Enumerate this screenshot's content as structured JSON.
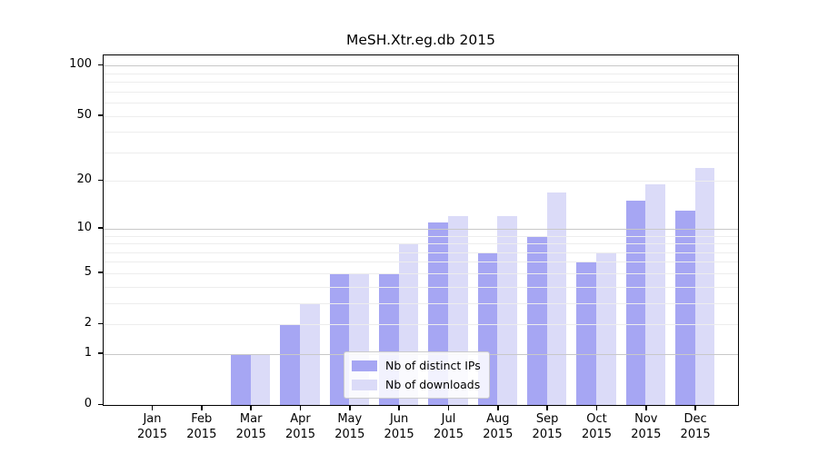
{
  "chart_data": {
    "type": "bar",
    "title": "MeSH.Xtr.eg.db 2015",
    "categories": [
      "Jan",
      "Feb",
      "Mar",
      "Apr",
      "May",
      "Jun",
      "Jul",
      "Aug",
      "Sep",
      "Oct",
      "Nov",
      "Dec"
    ],
    "year": "2015",
    "series": [
      {
        "name": "Nb of distinct IPs",
        "color": "#a6a6f3",
        "values": [
          0,
          0,
          1,
          2,
          5,
          5,
          11,
          7,
          9,
          6,
          15,
          13
        ]
      },
      {
        "name": "Nb of downloads",
        "color": "#dbdbf8",
        "values": [
          0,
          0,
          1,
          3,
          5,
          8,
          12,
          12,
          17,
          7,
          19,
          24
        ]
      }
    ],
    "y_ticks": [
      0,
      1,
      2,
      5,
      10,
      20,
      50,
      100
    ],
    "y_scale": "log1p",
    "ylim": [
      0,
      115
    ],
    "xlabel": "",
    "ylabel": "",
    "grid": "on",
    "legend_position": "inside-lower-center"
  },
  "colors": {
    "background": "#ffffff",
    "axis": "#000000",
    "grid_major": "#c8c8c8",
    "grid_minor": "#ededed",
    "legend_border": "#cccccc"
  }
}
